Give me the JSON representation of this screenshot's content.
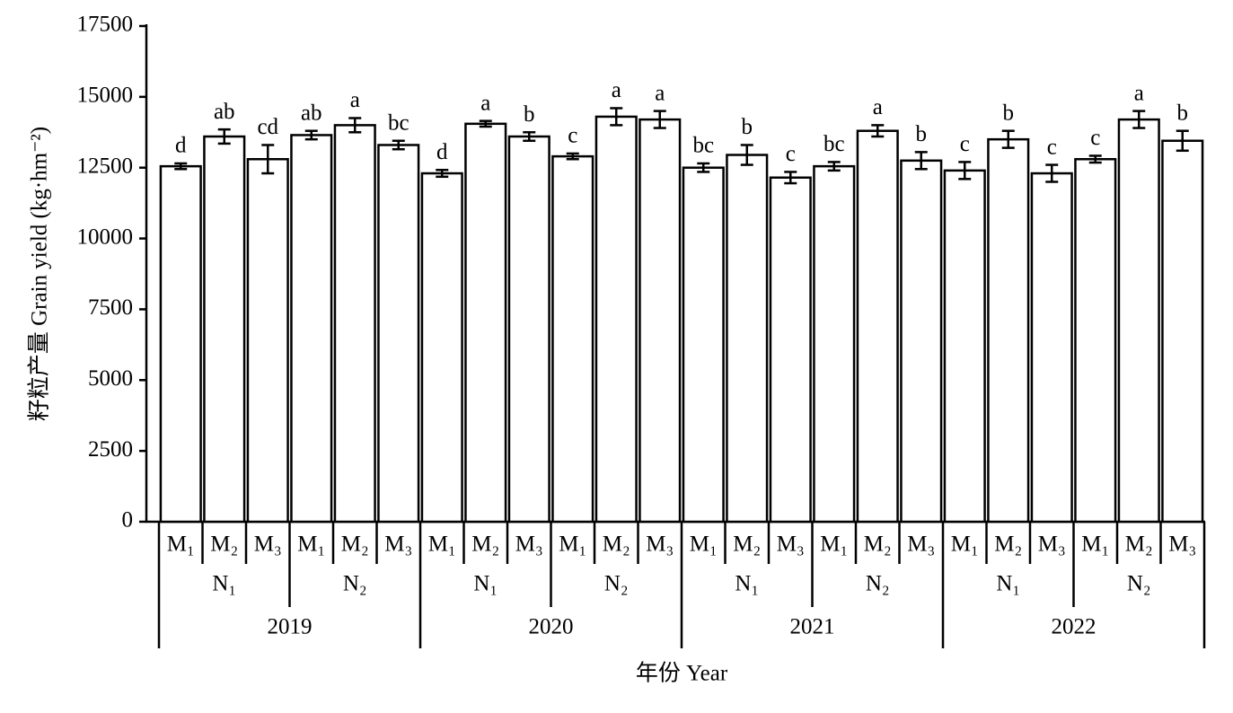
{
  "chart_data": {
    "type": "bar",
    "y_label": "籽粒产量 Grain yield (kg·hm⁻²)",
    "x_label": "年份 Year",
    "categories": [
      "M₁",
      "M₂",
      "M₃",
      "M₁",
      "M₂",
      "M₃",
      "M₁",
      "M₂",
      "M₃",
      "M₁",
      "M₂",
      "M₃",
      "M₁",
      "M₂",
      "M₃",
      "M₁",
      "M₂",
      "M₃",
      "M₁",
      "M₂",
      "M₃",
      "M₁",
      "M₂",
      "M₃"
    ],
    "n_groups": [
      "N₁",
      "N₂",
      "N₁",
      "N₂",
      "N₁",
      "N₂",
      "N₁",
      "N₂"
    ],
    "years": [
      "2019",
      "2020",
      "2021",
      "2022"
    ],
    "values": [
      12550,
      13600,
      12800,
      13650,
      14000,
      13300,
      12300,
      14050,
      13600,
      12900,
      14300,
      14200,
      12500,
      12950,
      12150,
      12550,
      13800,
      12750,
      12400,
      13500,
      12300,
      12800,
      14200,
      13450
    ],
    "errors": [
      100,
      250,
      500,
      150,
      250,
      150,
      120,
      100,
      150,
      100,
      300,
      300,
      150,
      350,
      200,
      150,
      200,
      300,
      300,
      300,
      300,
      120,
      300,
      350
    ],
    "letters": [
      "d",
      "ab",
      "cd",
      "ab",
      "a",
      "bc",
      "d",
      "a",
      "b",
      "c",
      "a",
      "a",
      "bc",
      "b",
      "c",
      "bc",
      "a",
      "b",
      "c",
      "b",
      "c",
      "c",
      "a",
      "b"
    ],
    "color": "#ffffff",
    "ylim": [
      0,
      17500
    ],
    "yticks": [
      0,
      2500,
      5000,
      7500,
      10000,
      12500,
      15000,
      17500
    ]
  }
}
